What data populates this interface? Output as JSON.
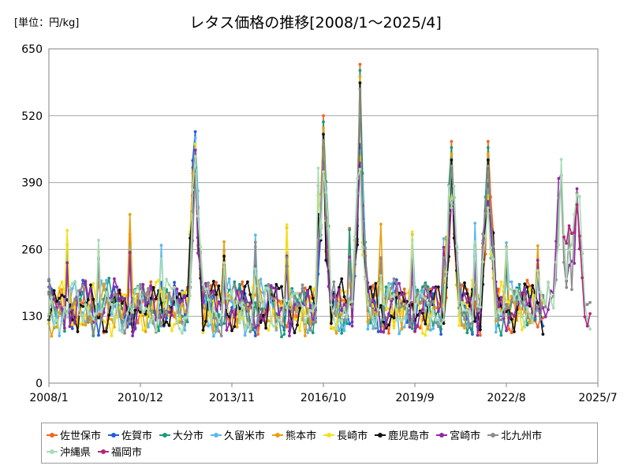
{
  "header": {
    "unit_label": "[単位：円/kg]",
    "title": "レタス価格の推移[2008/1～2025/4]"
  },
  "chart_data": {
    "type": "line",
    "title": "レタス価格の推移[2008/1～2025/4]",
    "unit": "[単位：円/kg]",
    "x_tick_labels": [
      "2008/1",
      "2010/12",
      "2013/11",
      "2016/10",
      "2019/9",
      "2022/8",
      "2025/7"
    ],
    "y_ticks": [
      0,
      130,
      260,
      390,
      520,
      650
    ],
    "ylim": [
      0,
      650
    ],
    "xlim": [
      "2008/1",
      "2025/7"
    ],
    "grid": "horizontal",
    "legend_position": "bottom",
    "marker": "circle",
    "reference_points": [
      {
        "date": "2012/9",
        "value": 455
      },
      {
        "date": "2012/9",
        "value": 495
      },
      {
        "date": "2016/10",
        "value": 520
      },
      {
        "date": "2016/10",
        "value": 465
      },
      {
        "date": "2017/12",
        "value": 620
      },
      {
        "date": "2017/12",
        "value": 470
      },
      {
        "date": "2020/11",
        "value": 470
      },
      {
        "date": "2020/11",
        "value": 395
      },
      {
        "date": "2022/1",
        "value": 470
      },
      {
        "date": "2022/1",
        "value": 395
      },
      {
        "date": "2024/5",
        "value": 435
      },
      {
        "date": "2024/11",
        "value": 420
      }
    ],
    "series": [
      {
        "name": "佐世保市",
        "color": "#f26522",
        "start": "2008/1",
        "end": "2023/10",
        "values": []
      },
      {
        "name": "佐賀市",
        "color": "#1f5fd6",
        "start": "2008/1",
        "end": "2023/10",
        "values": []
      },
      {
        "name": "大分市",
        "color": "#1a9b78",
        "start": "2008/1",
        "end": "2023/10",
        "values": []
      },
      {
        "name": "久留米市",
        "color": "#5cb8ec",
        "start": "2008/1",
        "end": "2023/10",
        "values": []
      },
      {
        "name": "熊本市",
        "color": "#e8a10c",
        "start": "2008/1",
        "end": "2023/10",
        "values": []
      },
      {
        "name": "長崎市",
        "color": "#f3e01c",
        "start": "2008/1",
        "end": "2023/10",
        "values": []
      },
      {
        "name": "鹿児島市",
        "color": "#111111",
        "start": "2008/1",
        "end": "2023/10",
        "values": []
      },
      {
        "name": "宮崎市",
        "color": "#8f2aa6",
        "start": "2008/1",
        "end": "2024/12",
        "values": []
      },
      {
        "name": "北九州市",
        "color": "#8c8c8c",
        "start": "2008/1",
        "end": "2025/4",
        "values": []
      },
      {
        "name": "沖縄県",
        "color": "#a8ddb5",
        "start": "2008/1",
        "end": "2025/4",
        "values": []
      },
      {
        "name": "福岡市",
        "color": "#b0287a",
        "start": "2024/6",
        "end": "2025/4",
        "values": []
      }
    ]
  }
}
